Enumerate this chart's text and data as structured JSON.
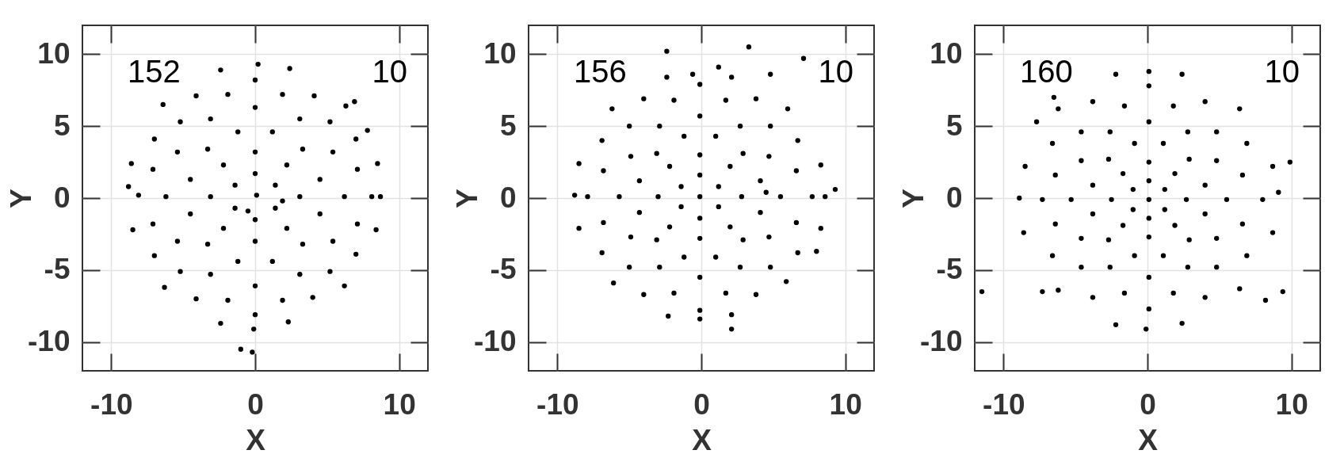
{
  "chart_data": [
    {
      "type": "scatter",
      "xlabel": "X",
      "ylabel": "Y",
      "xlim": [
        -12,
        12
      ],
      "ylim": [
        -12,
        12
      ],
      "xticks": [
        -10,
        0,
        10
      ],
      "yticks": [
        -10,
        -5,
        0,
        5,
        10
      ],
      "grid": true,
      "marker": "circle",
      "annotations": [
        "152",
        "10"
      ],
      "series": [
        {
          "color": "#000000",
          "x": [
            8.5,
            6.3,
            2.4,
            -2.4,
            -6.4,
            -8.6,
            -8.5,
            -6.3,
            -2.4,
            2.3,
            6.2,
            8.4,
            0.2,
            8.7,
            -8.8,
            -0.1,
            8.1,
            7.0,
            4.1,
            0,
            -4.1,
            -7.0,
            -8.1,
            -7.0,
            -4.1,
            0,
            4.0,
            7.0,
            7.1,
            5.2,
            1.9,
            -1.9,
            -5.2,
            -7.1,
            -7.1,
            -5.2,
            -1.9,
            1.9,
            5.2,
            7.1,
            6.2,
            5.4,
            3.1,
            0,
            -3.1,
            -5.4,
            -6.2,
            -5.4,
            -3.1,
            0,
            3.1,
            5.4,
            4.5,
            3.3,
            1.2,
            -1.2,
            -3.3,
            -4.5,
            -4.5,
            -3.3,
            -1.2,
            1.2,
            3.3,
            4.5,
            3.1,
            2.2,
            0,
            -2.2,
            -3.1,
            -2.2,
            0,
            2.2,
            1.4,
            0,
            -1.4,
            -1.4,
            0,
            1.4,
            0.1,
            -0.5,
            1.9,
            -1.0,
            -0.2,
            6.9,
            7.8
          ],
          "values": [
            2.4,
            6.4,
            9.0,
            8.9,
            6.5,
            2.4,
            -2.2,
            -6.2,
            -8.7,
            -8.6,
            -6.1,
            -2.2,
            9.3,
            0.1,
            0.8,
            -9.1,
            0.1,
            4.1,
            7.1,
            8.2,
            7.1,
            4.1,
            0.2,
            -4.0,
            -7.0,
            -8.1,
            -6.9,
            -3.9,
            2.0,
            5.3,
            7.2,
            7.2,
            5.3,
            2.0,
            -1.8,
            -5.1,
            -7.1,
            -7.1,
            -5.1,
            -1.8,
            0.1,
            3.2,
            5.5,
            6.3,
            5.5,
            3.2,
            0.1,
            -3.0,
            -5.3,
            -6.1,
            -5.3,
            -3.0,
            1.3,
            3.4,
            4.6,
            4.6,
            3.4,
            1.3,
            -1.1,
            -3.2,
            -4.4,
            -4.4,
            -3.2,
            -1.1,
            0.1,
            2.3,
            3.2,
            2.3,
            0.1,
            -2.1,
            -3.0,
            -2.1,
            0.9,
            1.7,
            0.9,
            -0.7,
            -1.5,
            -0.7,
            0.2,
            -0.9,
            -0.2,
            -10.5,
            -10.7,
            6.7,
            4.7
          ]
        }
      ]
    },
    {
      "type": "scatter",
      "xlabel": "X",
      "ylabel": "Y",
      "xlim": [
        -12,
        12
      ],
      "ylim": [
        -12,
        12
      ],
      "xticks": [
        -10,
        0,
        10
      ],
      "yticks": [
        -10,
        -5,
        0,
        5,
        10
      ],
      "grid": true,
      "marker": "circle",
      "annotations": [
        "156",
        "10"
      ],
      "series": [
        {
          "color": "#000000",
          "x": [
            8.3,
            6.0,
            2.1,
            -2.4,
            -6.2,
            -8.5,
            -8.5,
            -6.1,
            -2.3,
            2.1,
            5.9,
            8.3,
            -0.6,
            8.6,
            -8.8,
            -0.1,
            7.7,
            6.7,
            3.8,
            -0.1,
            -4.0,
            -6.9,
            -7.9,
            -6.9,
            -4.0,
            -0.1,
            3.8,
            6.7,
            6.6,
            4.8,
            1.7,
            -1.9,
            -5.0,
            -6.8,
            -6.8,
            -5.0,
            -1.9,
            1.7,
            4.8,
            6.6,
            5.5,
            4.7,
            2.7,
            -0.1,
            -2.9,
            -4.9,
            -5.7,
            -4.9,
            -2.9,
            -0.1,
            2.7,
            4.7,
            4.1,
            2.9,
            1.0,
            -1.2,
            -3.1,
            -4.3,
            -4.3,
            -3.1,
            -1.2,
            1.0,
            2.9,
            4.1,
            2.8,
            2.0,
            -0.1,
            -2.2,
            -3.0,
            -2.2,
            -0.1,
            2.0,
            1.2,
            -0.1,
            -1.4,
            -1.4,
            -0.1,
            1.2,
            -0.1,
            4.5,
            -2.4,
            3.3,
            7.1,
            4.8,
            1.2,
            9.3,
            2.1,
            8.0
          ],
          "values": [
            2.3,
            6.2,
            8.4,
            8.4,
            6.2,
            2.4,
            -2.1,
            -5.9,
            -8.2,
            -8.1,
            -5.8,
            -2.1,
            8.6,
            0.1,
            0.2,
            -8.4,
            0.1,
            4.0,
            6.9,
            7.9,
            6.9,
            4.0,
            0.1,
            -3.8,
            -6.7,
            -7.8,
            -6.7,
            -3.8,
            1.9,
            5.0,
            6.8,
            6.8,
            5.0,
            1.9,
            -1.7,
            -4.8,
            -6.6,
            -6.6,
            -4.8,
            -1.7,
            0.1,
            2.9,
            5.0,
            5.7,
            5.0,
            2.9,
            0.1,
            -2.7,
            -4.8,
            -5.5,
            -4.8,
            -2.7,
            1.2,
            3.1,
            4.3,
            4.3,
            3.1,
            1.2,
            -1.0,
            -2.9,
            -4.1,
            -4.1,
            -2.9,
            -1.0,
            0.1,
            2.2,
            3.0,
            2.2,
            0.1,
            -2.0,
            -2.8,
            -2.0,
            0.8,
            1.6,
            0.8,
            -0.6,
            -1.4,
            -0.6,
            0.1,
            0.4,
            10.2,
            10.5,
            9.7,
            8.6,
            9.1,
            0.6,
            -9.1,
            -3.7
          ]
        }
      ]
    },
    {
      "type": "scatter",
      "xlabel": "X",
      "ylabel": "Y",
      "xlim": [
        -12,
        12
      ],
      "ylim": [
        -12,
        12
      ],
      "xticks": [
        -10,
        0,
        10
      ],
      "yticks": [
        -10,
        -5,
        0,
        5,
        10
      ],
      "grid": true,
      "marker": "circle",
      "annotations": [
        "160",
        "10"
      ],
      "series": [
        {
          "color": "#000000",
          "x": [
            8.7,
            6.4,
            2.4,
            -2.2,
            -6.2,
            -8.5,
            -8.6,
            -6.2,
            -2.2,
            2.4,
            6.4,
            8.7,
            0.1,
            9.1,
            -8.9,
            -0.1,
            8.0,
            6.9,
            4.0,
            0.1,
            -3.8,
            -6.6,
            -7.3,
            -6.6,
            -3.8,
            0.1,
            4.0,
            6.9,
            6.6,
            4.8,
            1.8,
            -1.6,
            -4.6,
            -6.4,
            -6.4,
            -4.6,
            -1.6,
            1.8,
            4.8,
            6.6,
            5.5,
            4.8,
            2.8,
            0.1,
            -2.6,
            -4.6,
            -5.3,
            -4.6,
            -2.6,
            0.1,
            2.8,
            4.8,
            4.0,
            2.9,
            1.1,
            -0.9,
            -2.7,
            -3.8,
            -3.8,
            -2.7,
            -0.9,
            1.1,
            2.9,
            4.0,
            2.7,
            1.9,
            0.1,
            -1.7,
            -2.5,
            -1.7,
            0.1,
            1.9,
            1.2,
            0.1,
            -1.0,
            -1.0,
            0.1,
            1.2,
            0.1,
            -7.7,
            -6.5,
            9.9,
            -11.5,
            9.4,
            8.2,
            -7.3
          ],
          "values": [
            2.2,
            6.2,
            8.6,
            8.6,
            6.2,
            2.2,
            -2.4,
            -6.4,
            -8.8,
            -8.7,
            -6.3,
            -2.4,
            8.8,
            0.4,
            0,
            -9.1,
            -0.1,
            3.8,
            6.7,
            7.8,
            6.7,
            3.8,
            -0.1,
            -4.0,
            -6.9,
            -7.7,
            -6.9,
            -4.0,
            1.6,
            4.6,
            6.4,
            6.4,
            4.6,
            1.6,
            -1.8,
            -4.8,
            -6.6,
            -6.6,
            -4.8,
            -1.8,
            -0.1,
            2.6,
            4.6,
            5.3,
            4.6,
            2.6,
            -0.1,
            -2.8,
            -4.8,
            -5.5,
            -4.8,
            -2.8,
            0.9,
            2.7,
            3.8,
            3.8,
            2.7,
            0.9,
            -1.1,
            -2.9,
            -4.0,
            -4.0,
            -2.9,
            -1.1,
            -0.1,
            1.7,
            2.5,
            1.7,
            -0.1,
            -1.9,
            -2.7,
            -1.9,
            0.6,
            1.2,
            0.6,
            -0.8,
            -1.4,
            -0.8,
            -0.1,
            5.3,
            7.0,
            2.5,
            -6.5,
            -6.5,
            -7.1,
            -6.5
          ]
        }
      ]
    }
  ]
}
